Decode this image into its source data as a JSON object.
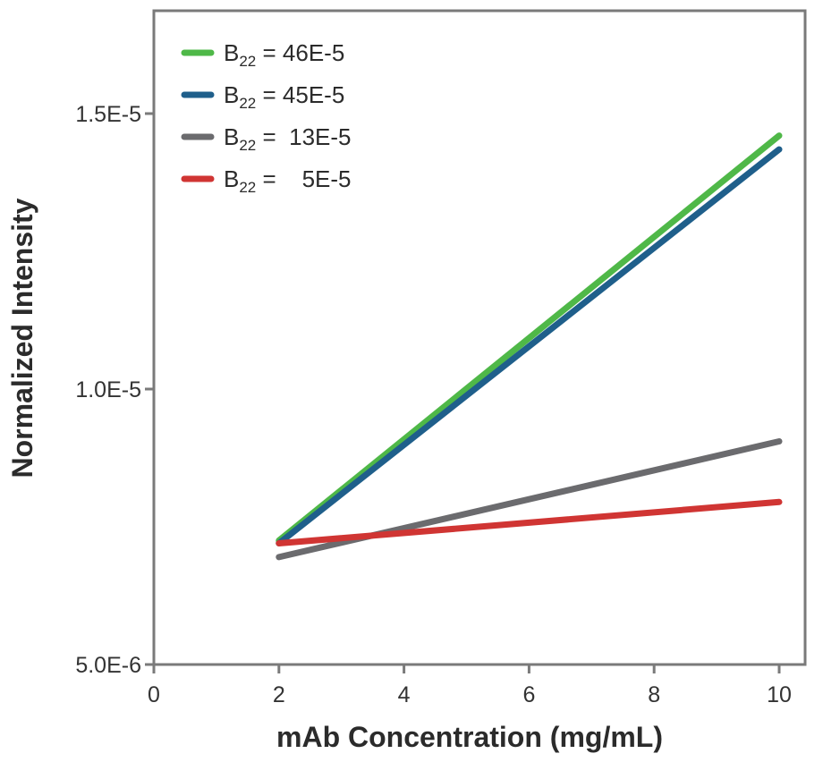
{
  "chart_data": {
    "type": "line",
    "title": "",
    "xlabel": "mAb Concentration (mg/mL)",
    "ylabel": "Normalized Intensity",
    "xlim": [
      0,
      10
    ],
    "ylim": [
      5e-06,
      1.65e-05
    ],
    "x_ticks": [
      0,
      2,
      4,
      6,
      8,
      10
    ],
    "x_tick_labels": [
      "0",
      "2",
      "4",
      "6",
      "8",
      "10"
    ],
    "y_ticks": [
      5e-06,
      1e-05,
      1.5e-05
    ],
    "y_tick_labels": [
      "5.0E-6",
      "1.0E-5",
      "1.5E-5"
    ],
    "grid": false,
    "legend_position": "top-left",
    "series": [
      {
        "name": "B22 = 46E-5",
        "legend_prefix": "B",
        "legend_sub": "22",
        "legend_value": "= 46E-5",
        "color": "#4fb848",
        "x": [
          2,
          10
        ],
        "y": [
          7.25e-06,
          1.46e-05
        ]
      },
      {
        "name": "B22 = 45E-5",
        "legend_prefix": "B",
        "legend_sub": "22",
        "legend_value": "= 45E-5",
        "color": "#1f5f8b",
        "x": [
          2,
          10
        ],
        "y": [
          7.2e-06,
          1.435e-05
        ]
      },
      {
        "name": "B22 = 13E-5",
        "legend_prefix": "B",
        "legend_sub": "22",
        "legend_value": "=  13E-5",
        "color": "#6b6b6e",
        "x": [
          2,
          10
        ],
        "y": [
          6.95e-06,
          9.05e-06
        ]
      },
      {
        "name": "B22 = 5E-5",
        "legend_prefix": "B",
        "legend_sub": "22",
        "legend_value": "=    5E-5",
        "color": "#d03533",
        "x": [
          2,
          10
        ],
        "y": [
          7.2e-06,
          7.95e-06
        ]
      }
    ]
  }
}
